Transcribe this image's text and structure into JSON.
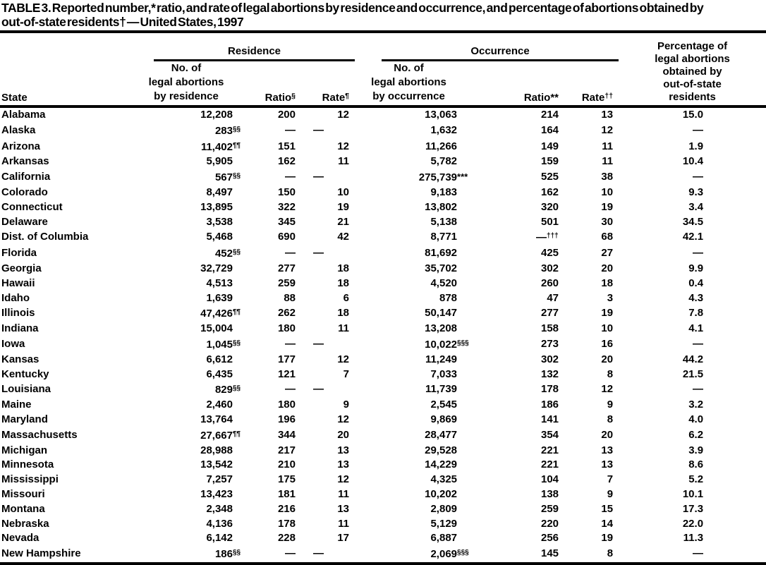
{
  "title": {
    "line1": "TABLE 3. Reported number,* ratio, and rate of legal abortions by residence and occurrence, and percentage of abortions obtained by",
    "line2": "out-of-state residents† — United States, 1997"
  },
  "table": {
    "groups": {
      "residence": "Residence",
      "occurrence": "Occurrence"
    },
    "header": {
      "state": "State",
      "res_n": "No. of\nlegal abortions\nby residence",
      "res_ratio": {
        "label": "Ratio",
        "sup": "§"
      },
      "res_rate": {
        "label": "Rate",
        "sup": "¶"
      },
      "occ_n": "No. of\nlegal abortions\nby occurrence",
      "occ_ratio": {
        "label": "Ratio",
        "sup": "**"
      },
      "occ_rate": {
        "label": "Rate",
        "sup": "††"
      },
      "pct": "Percentage of\nlegal abortions\nobtained by\nout-of-state\nresidents"
    },
    "columns": [
      {
        "key": "state",
        "class": "c-state"
      },
      {
        "key": "res_n",
        "class": "c-num"
      },
      {
        "key": "res_ratio",
        "class": "c-num"
      },
      {
        "key": "res_rate",
        "class": "c-num"
      },
      {
        "key": "occ_n",
        "class": "c-num"
      },
      {
        "key": "occ_ratio",
        "class": "c-num"
      },
      {
        "key": "occ_rate",
        "class": "c-num"
      },
      {
        "key": "pct",
        "class": "c-pct"
      }
    ],
    "rows": [
      {
        "state": "Alabama",
        "res_n": "12,208",
        "res_ratio": "200",
        "res_rate": "12",
        "occ_n": "13,063",
        "occ_ratio": "214",
        "occ_rate": "13",
        "pct": "15.0"
      },
      {
        "state": "Alaska",
        "res_n": "283",
        "res_n_sup": "§§",
        "res_ratio": "—",
        "res_rate": "—",
        "occ_n": "1,632",
        "occ_ratio": "164",
        "occ_rate": "12",
        "pct": "—"
      },
      {
        "state": "Arizona",
        "res_n": "11,402",
        "res_n_sup": "¶¶",
        "res_ratio": "151",
        "res_rate": "12",
        "occ_n": "11,266",
        "occ_ratio": "149",
        "occ_rate": "11",
        "pct": "1.9"
      },
      {
        "state": "Arkansas",
        "res_n": "5,905",
        "res_ratio": "162",
        "res_rate": "11",
        "occ_n": "5,782",
        "occ_ratio": "159",
        "occ_rate": "11",
        "pct": "10.4"
      },
      {
        "state": "California",
        "res_n": "567",
        "res_n_sup": "§§",
        "res_ratio": "—",
        "res_rate": "—",
        "occ_n": "275,739",
        "occ_n_sup": "***",
        "occ_ratio": "525",
        "occ_rate": "38",
        "pct": "—"
      },
      {
        "state": "Colorado",
        "res_n": "8,497",
        "res_ratio": "150",
        "res_rate": "10",
        "occ_n": "9,183",
        "occ_ratio": "162",
        "occ_rate": "10",
        "pct": "9.3"
      },
      {
        "state": "Connecticut",
        "res_n": "13,895",
        "res_ratio": "322",
        "res_rate": "19",
        "occ_n": "13,802",
        "occ_ratio": "320",
        "occ_rate": "19",
        "pct": "3.4"
      },
      {
        "state": "Delaware",
        "res_n": "3,538",
        "res_ratio": "345",
        "res_rate": "21",
        "occ_n": "5,138",
        "occ_ratio": "501",
        "occ_rate": "30",
        "pct": "34.5"
      },
      {
        "state": "Dist. of Columbia",
        "res_n": "5,468",
        "res_ratio": "690",
        "res_rate": "42",
        "occ_n": "8,771",
        "occ_ratio": "—",
        "occ_ratio_sup": "†††",
        "occ_rate": "68",
        "pct": "42.1"
      },
      {
        "state": "Florida",
        "res_n": "452",
        "res_n_sup": "§§",
        "res_ratio": "—",
        "res_rate": "—",
        "occ_n": "81,692",
        "occ_ratio": "425",
        "occ_rate": "27",
        "pct": "—"
      },
      {
        "state": "Georgia",
        "res_n": "32,729",
        "res_ratio": "277",
        "res_rate": "18",
        "occ_n": "35,702",
        "occ_ratio": "302",
        "occ_rate": "20",
        "pct": "9.9"
      },
      {
        "state": "Hawaii",
        "res_n": "4,513",
        "res_ratio": "259",
        "res_rate": "18",
        "occ_n": "4,520",
        "occ_ratio": "260",
        "occ_rate": "18",
        "pct": "0.4"
      },
      {
        "state": "Idaho",
        "res_n": "1,639",
        "res_ratio": "88",
        "res_rate": "6",
        "occ_n": "878",
        "occ_ratio": "47",
        "occ_rate": "3",
        "pct": "4.3"
      },
      {
        "state": "Illinois",
        "res_n": "47,426",
        "res_n_sup": "¶¶",
        "res_ratio": "262",
        "res_rate": "18",
        "occ_n": "50,147",
        "occ_ratio": "277",
        "occ_rate": "19",
        "pct": "7.8"
      },
      {
        "state": "Indiana",
        "res_n": "15,004",
        "res_ratio": "180",
        "res_rate": "11",
        "occ_n": "13,208",
        "occ_ratio": "158",
        "occ_rate": "10",
        "pct": "4.1"
      },
      {
        "state": "Iowa",
        "res_n": "1,045",
        "res_n_sup": "§§",
        "res_ratio": "—",
        "res_rate": "—",
        "occ_n": "10,022",
        "occ_n_sup": "§§§",
        "occ_ratio": "273",
        "occ_rate": "16",
        "pct": "—"
      },
      {
        "state": "Kansas",
        "res_n": "6,612",
        "res_ratio": "177",
        "res_rate": "12",
        "occ_n": "11,249",
        "occ_ratio": "302",
        "occ_rate": "20",
        "pct": "44.2"
      },
      {
        "state": "Kentucky",
        "res_n": "6,435",
        "res_ratio": "121",
        "res_rate": "7",
        "occ_n": "7,033",
        "occ_ratio": "132",
        "occ_rate": "8",
        "pct": "21.5"
      },
      {
        "state": "Louisiana",
        "res_n": "829",
        "res_n_sup": "§§",
        "res_ratio": "—",
        "res_rate": "—",
        "occ_n": "11,739",
        "occ_ratio": "178",
        "occ_rate": "12",
        "pct": "—"
      },
      {
        "state": "Maine",
        "res_n": "2,460",
        "res_ratio": "180",
        "res_rate": "9",
        "occ_n": "2,545",
        "occ_ratio": "186",
        "occ_rate": "9",
        "pct": "3.2"
      },
      {
        "state": "Maryland",
        "res_n": "13,764",
        "res_ratio": "196",
        "res_rate": "12",
        "occ_n": "9,869",
        "occ_ratio": "141",
        "occ_rate": "8",
        "pct": "4.0"
      },
      {
        "state": "Massachusetts",
        "res_n": "27,667",
        "res_n_sup": "¶¶",
        "res_ratio": "344",
        "res_rate": "20",
        "occ_n": "28,477",
        "occ_ratio": "354",
        "occ_rate": "20",
        "pct": "6.2"
      },
      {
        "state": "Michigan",
        "res_n": "28,988",
        "res_ratio": "217",
        "res_rate": "13",
        "occ_n": "29,528",
        "occ_ratio": "221",
        "occ_rate": "13",
        "pct": "3.9"
      },
      {
        "state": "Minnesota",
        "res_n": "13,542",
        "res_ratio": "210",
        "res_rate": "13",
        "occ_n": "14,229",
        "occ_ratio": "221",
        "occ_rate": "13",
        "pct": "8.6"
      },
      {
        "state": "Mississippi",
        "res_n": "7,257",
        "res_ratio": "175",
        "res_rate": "12",
        "occ_n": "4,325",
        "occ_ratio": "104",
        "occ_rate": "7",
        "pct": "5.2"
      },
      {
        "state": "Missouri",
        "res_n": "13,423",
        "res_ratio": "181",
        "res_rate": "11",
        "occ_n": "10,202",
        "occ_ratio": "138",
        "occ_rate": "9",
        "pct": "10.1"
      },
      {
        "state": "Montana",
        "res_n": "2,348",
        "res_ratio": "216",
        "res_rate": "13",
        "occ_n": "2,809",
        "occ_ratio": "259",
        "occ_rate": "15",
        "pct": "17.3"
      },
      {
        "state": "Nebraska",
        "res_n": "4,136",
        "res_ratio": "178",
        "res_rate": "11",
        "occ_n": "5,129",
        "occ_ratio": "220",
        "occ_rate": "14",
        "pct": "22.0"
      },
      {
        "state": "Nevada",
        "res_n": "6,142",
        "res_ratio": "228",
        "res_rate": "17",
        "occ_n": "6,887",
        "occ_ratio": "256",
        "occ_rate": "19",
        "pct": "11.3"
      },
      {
        "state": "New Hampshire",
        "res_n": "186",
        "res_n_sup": "§§",
        "res_ratio": "—",
        "res_rate": "—",
        "occ_n": "2,069",
        "occ_n_sup": "§§§",
        "occ_ratio": "145",
        "occ_rate": "8",
        "pct": "—"
      }
    ]
  }
}
